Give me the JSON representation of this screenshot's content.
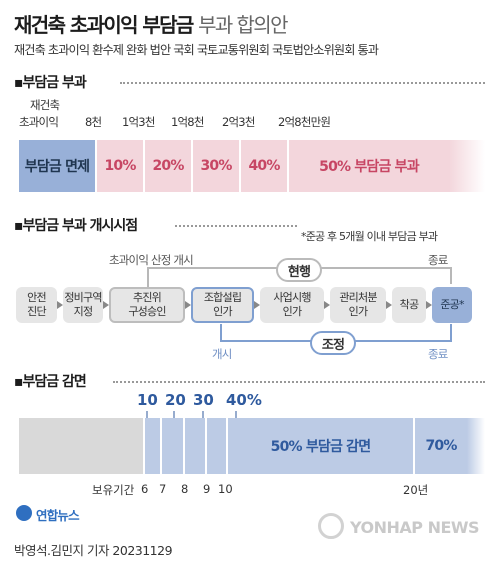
{
  "title": {
    "main": "재건축 초과이익 부담금",
    "sub": "부과 합의안"
  },
  "subtitle": "재건축 초과이익 환수제 완화 법안 국회 국토교통위원회 국토법안소위원회 통과",
  "section1": {
    "heading": "▪부담금 부과",
    "axis_label_line1": "재건축",
    "axis_label_line2": "초과이익",
    "thresholds": [
      "8천",
      "1억3천",
      "1억8천",
      "2억3천",
      "2억8천만원"
    ],
    "bands": [
      {
        "label": "부담금 면제"
      },
      {
        "label": "10%"
      },
      {
        "label": "20%"
      },
      {
        "label": "30%"
      },
      {
        "label": "40%"
      },
      {
        "label": "50% 부담금 부과"
      }
    ],
    "colors": {
      "exempt": "#98b0d8",
      "levy": "#f3d6dc",
      "levy_text": "#c74664"
    }
  },
  "section2": {
    "heading": "▪부담금 부과 개시시점",
    "note": "*준공 후 5개월 이내 부담금 부과",
    "calc_start_label": "초과이익 산정 개시",
    "current": {
      "label": "현행",
      "end_label": "종료"
    },
    "revised": {
      "label": "조정",
      "start_label": "개시",
      "end_label": "종료"
    },
    "steps": [
      "안전\n진단",
      "정비구역\n지정",
      "추진위\n구성승인",
      "조합설립\n인가",
      "사업시행\n인가",
      "관리처분\n인가",
      "착공",
      "준공*"
    ]
  },
  "section3": {
    "heading": "▪부담금 감면",
    "rates": [
      "10",
      "20",
      "30",
      "40%"
    ],
    "band_main": "50%  부담금 감면",
    "band_end": "70%",
    "period_label": "보유기간",
    "years": [
      "6",
      "7",
      "8",
      "9",
      "10"
    ],
    "year_end": "20년"
  },
  "footer": {
    "logo_text": "연합뉴스",
    "watermark": "YONHAP NEWS",
    "credit": "박영석.김민지 기자 20231129"
  }
}
